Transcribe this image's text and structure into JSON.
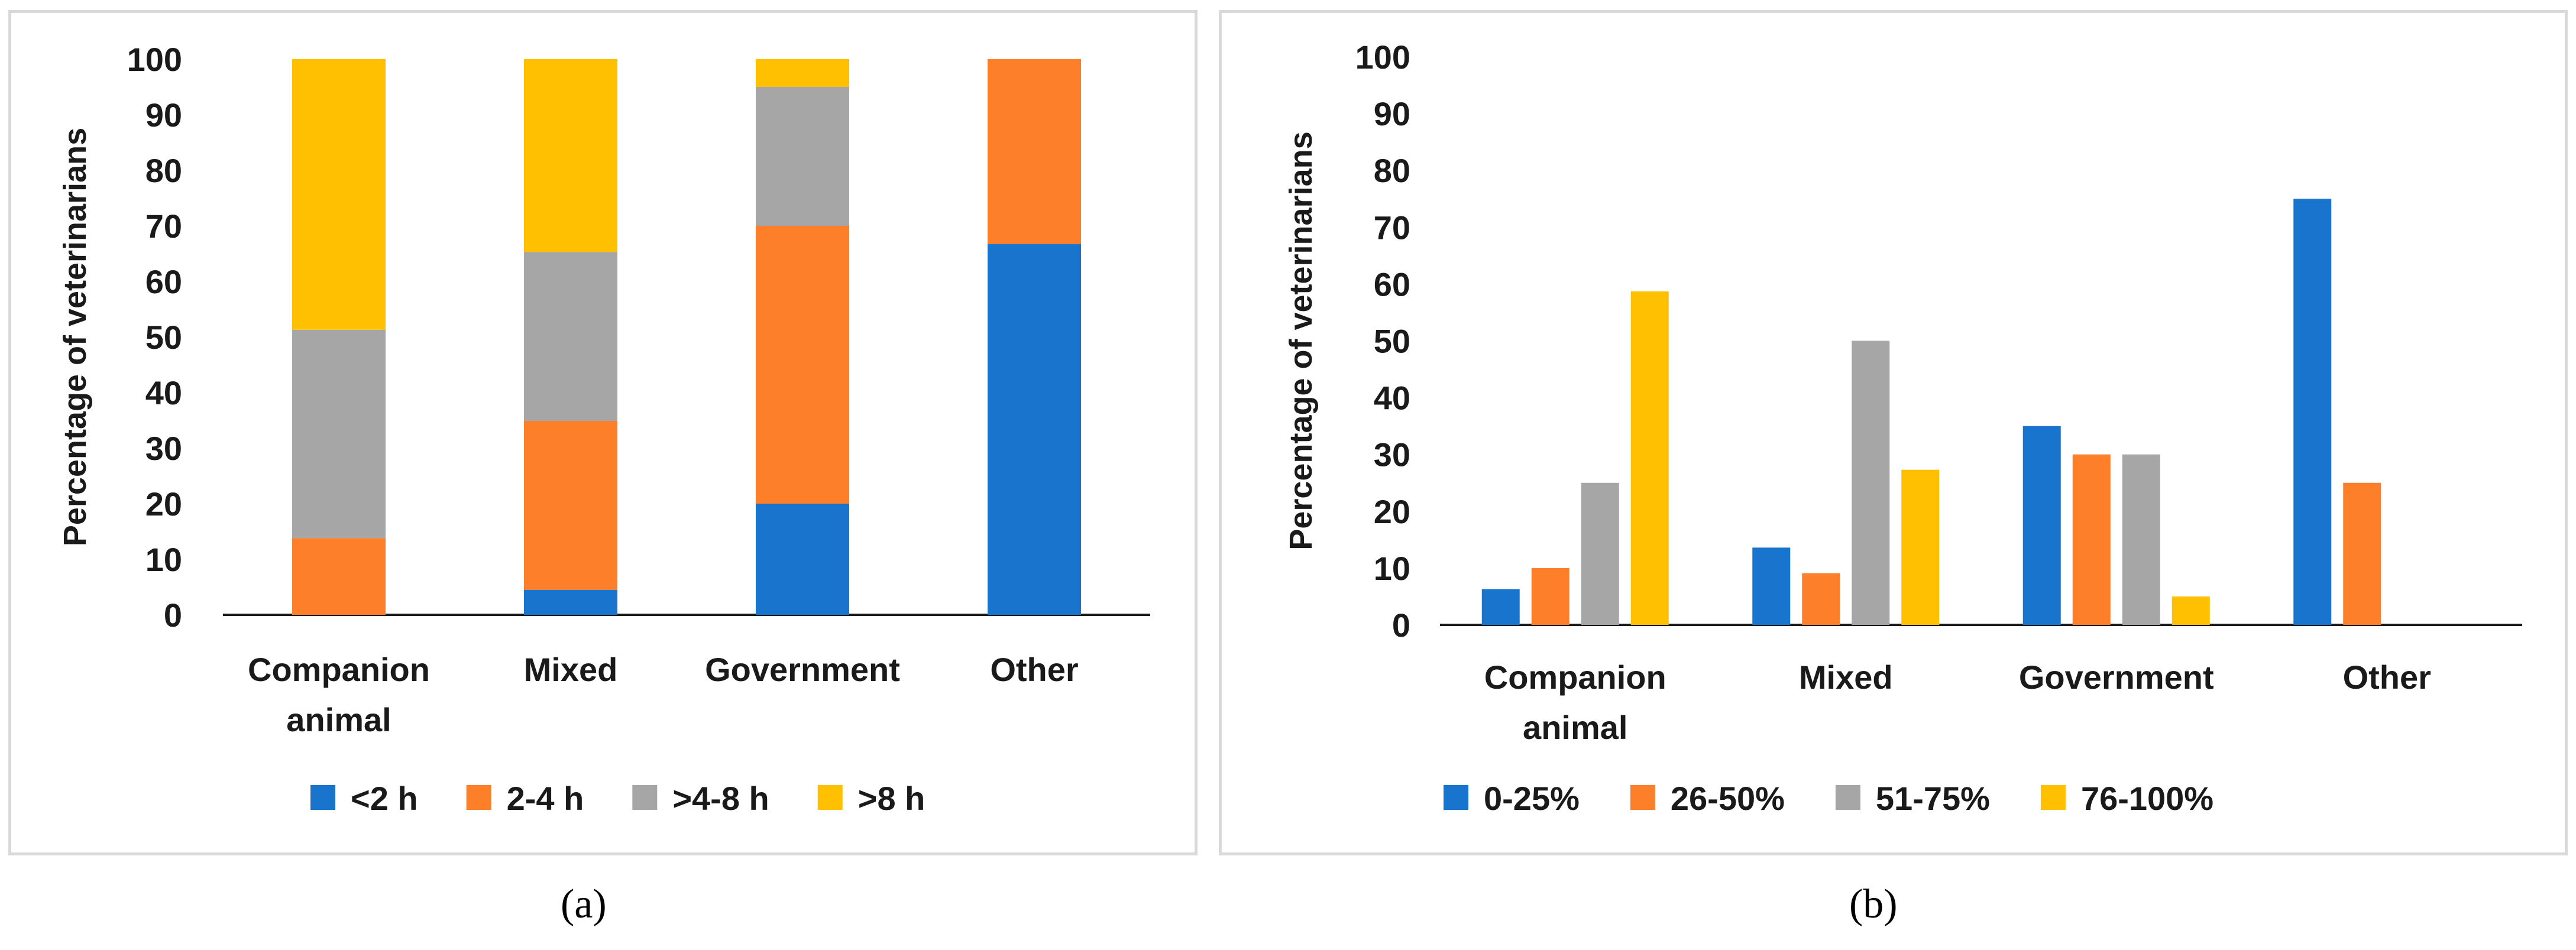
{
  "captions": {
    "a": "(a)",
    "b": "(b)"
  },
  "colors": {
    "blue": "#1874cd",
    "orange": "#fe7f2a",
    "gray": "#a6a6a6",
    "yellow": "#fec000",
    "axis": "#1a1a1a",
    "border": "#d9d9d9"
  },
  "chart_data": [
    {
      "type": "bar",
      "stacked": true,
      "title": "",
      "xlabel": "",
      "ylabel": "Percentage of veterinarians",
      "ylim": [
        0,
        100
      ],
      "yticks": [
        0,
        10,
        20,
        30,
        40,
        50,
        60,
        70,
        80,
        90,
        100
      ],
      "grid": false,
      "legend_position": "bottom",
      "categories": [
        [
          "Companion",
          "animal"
        ],
        [
          "Mixed"
        ],
        [
          "Government"
        ],
        [
          "Other"
        ]
      ],
      "series": [
        {
          "name": "<2 h",
          "color": "#1874cd",
          "values": [
            0,
            4.5,
            20,
            66.7
          ]
        },
        {
          "name": "2-4 h",
          "color": "#fe7f2a",
          "values": [
            13.8,
            30.4,
            50,
            33.3
          ]
        },
        {
          "name": ">4-8 h",
          "color": "#a6a6a6",
          "values": [
            37.5,
            30.4,
            25,
            0
          ]
        },
        {
          "name": ">8 h",
          "color": "#fec000",
          "values": [
            48.7,
            34.7,
            5,
            0
          ]
        }
      ]
    },
    {
      "type": "bar",
      "stacked": false,
      "title": "",
      "xlabel": "",
      "ylabel": "Percentage of veterinarians",
      "ylim": [
        0,
        100
      ],
      "yticks": [
        0,
        10,
        20,
        30,
        40,
        50,
        60,
        70,
        80,
        90,
        100
      ],
      "grid": false,
      "legend_position": "bottom",
      "categories": [
        [
          "Companion",
          "animal"
        ],
        [
          "Mixed"
        ],
        [
          "Government"
        ],
        [
          "Other"
        ]
      ],
      "series": [
        {
          "name": "0-25%",
          "color": "#1874cd",
          "values": [
            6.3,
            13.6,
            35,
            75
          ]
        },
        {
          "name": "26-50%",
          "color": "#fe7f2a",
          "values": [
            10,
            9.1,
            30,
            25
          ]
        },
        {
          "name": "51-75%",
          "color": "#a6a6a6",
          "values": [
            25,
            50,
            30,
            0
          ]
        },
        {
          "name": "76-100%",
          "color": "#fec000",
          "values": [
            58.7,
            27.3,
            5,
            0
          ]
        }
      ]
    }
  ]
}
